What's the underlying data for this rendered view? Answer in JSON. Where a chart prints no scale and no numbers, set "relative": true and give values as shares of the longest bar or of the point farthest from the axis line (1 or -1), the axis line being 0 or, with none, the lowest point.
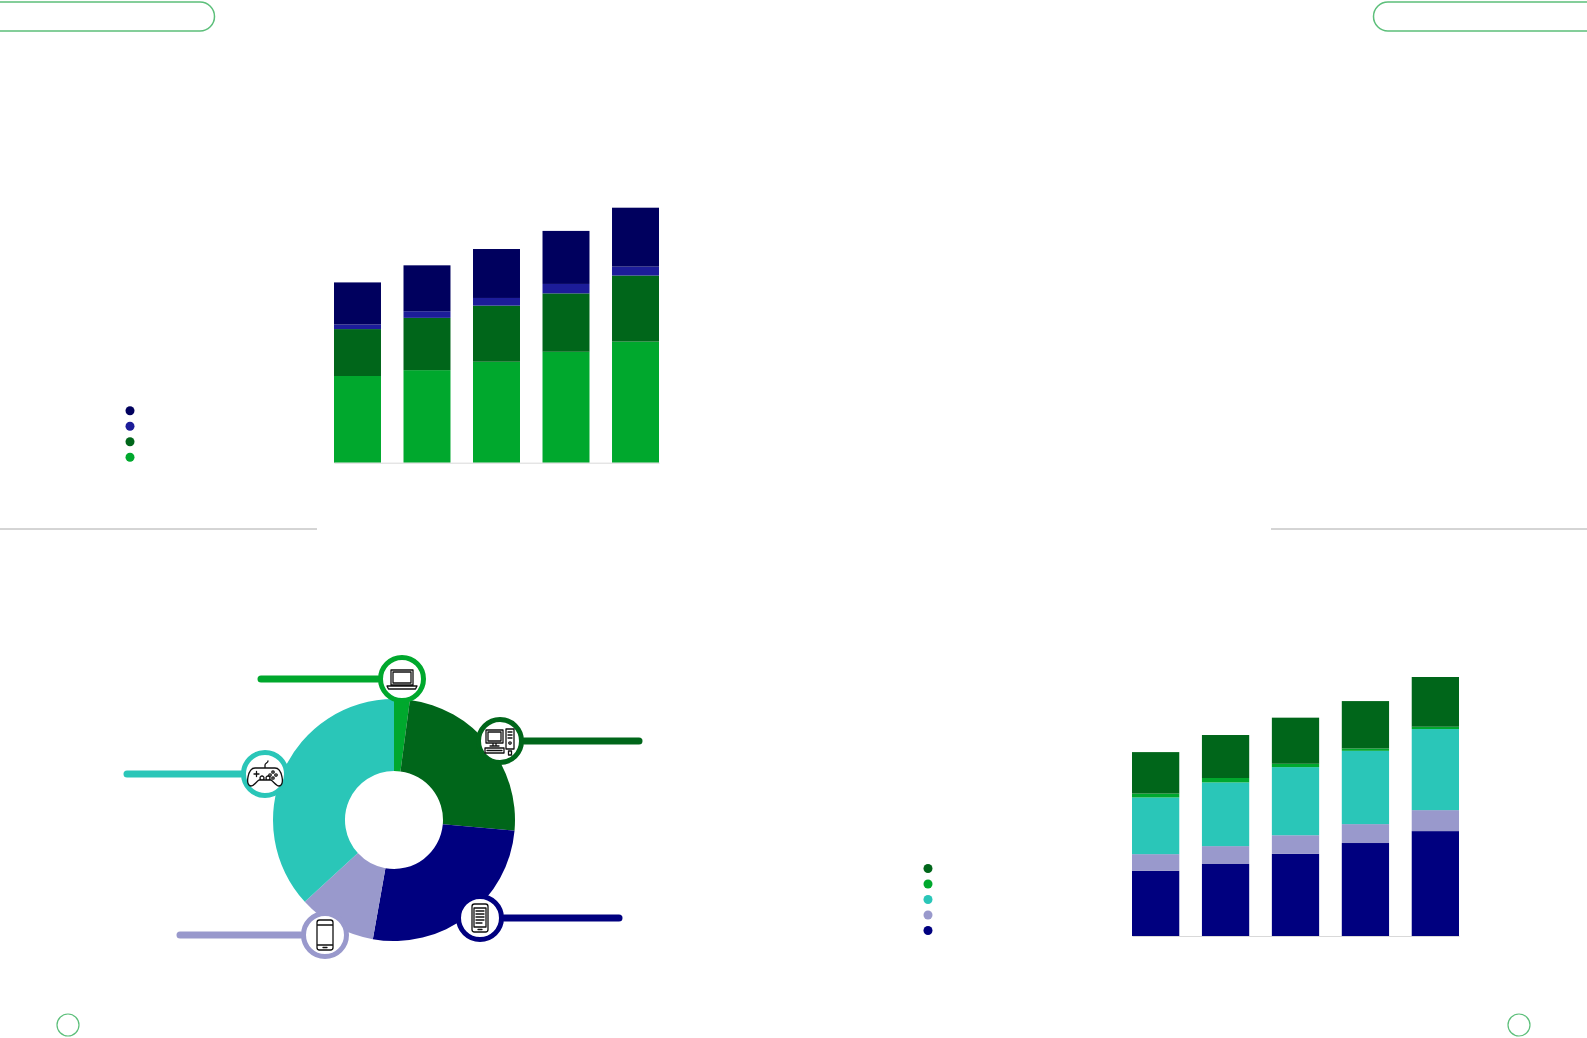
{
  "chart_data": [
    {
      "type": "bar",
      "stacked": true,
      "relative": true,
      "categories": [
        null,
        null,
        null,
        null,
        null
      ],
      "series": [
        {
          "color": "#00a82d",
          "values": [
            0.34,
            0.363,
            0.396,
            0.435,
            0.475
          ]
        },
        {
          "color": "#00661a",
          "values": [
            0.184,
            0.205,
            0.22,
            0.229,
            0.259
          ]
        },
        {
          "color": "#1c1c99",
          "values": [
            0.018,
            0.026,
            0.03,
            0.037,
            0.035
          ]
        },
        {
          "color": "#00005e",
          "values": [
            0.165,
            0.18,
            0.192,
            0.208,
            0.231
          ]
        }
      ]
    },
    {
      "type": "donut",
      "categories": [
        null,
        null,
        null,
        null,
        null
      ],
      "values": [
        2.1,
        24.3,
        26.4,
        10.4,
        36.8
      ],
      "colors": [
        "#00a82d",
        "#00661a",
        "#00007f",
        "#9999cc",
        "#2ac6b8"
      ]
    },
    {
      "type": "bar",
      "stacked": true,
      "relative": true,
      "categories": [
        null,
        null,
        null,
        null,
        null
      ],
      "series": [
        {
          "color": "#00007f",
          "values": [
            0.252,
            0.278,
            0.317,
            0.359,
            0.405
          ]
        },
        {
          "color": "#9999cc",
          "values": [
            0.064,
            0.069,
            0.072,
            0.073,
            0.081
          ]
        },
        {
          "color": "#2ac6b8",
          "values": [
            0.219,
            0.246,
            0.263,
            0.283,
            0.313
          ]
        },
        {
          "color": "#00a82d",
          "values": [
            0.015,
            0.017,
            0.013,
            0.009,
            0.009
          ]
        },
        {
          "color": "#00661a",
          "values": [
            0.16,
            0.166,
            0.178,
            0.183,
            0.192
          ]
        }
      ]
    }
  ]
}
